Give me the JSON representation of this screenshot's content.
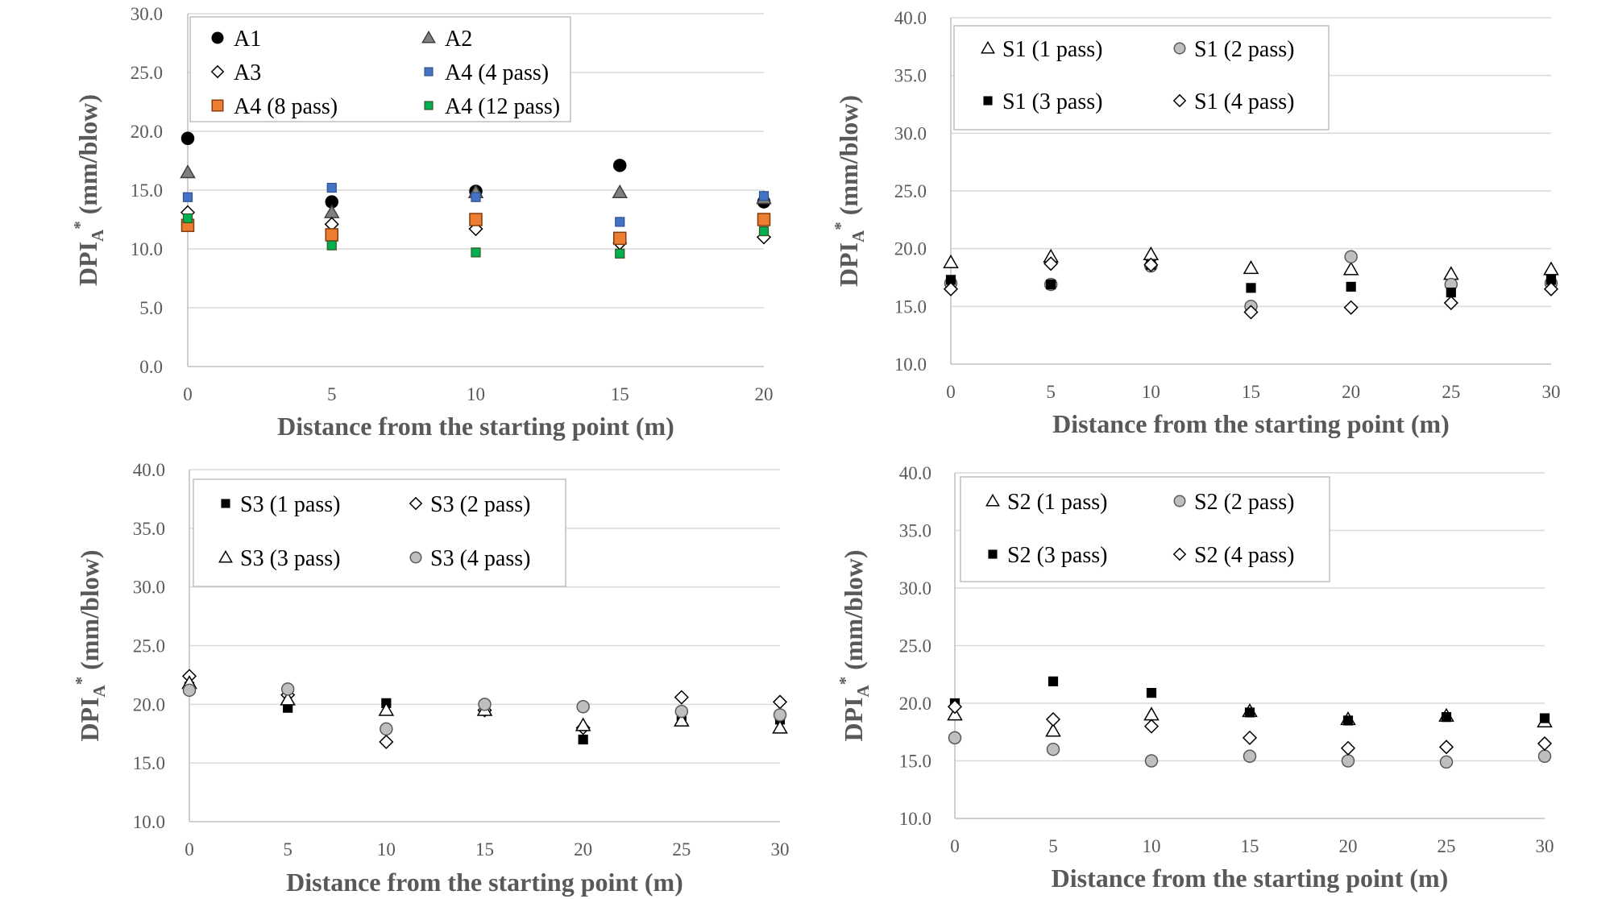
{
  "chart_data": [
    {
      "id": "A",
      "type": "scatter",
      "title": "",
      "xlabel": "Distance from the starting point (m)",
      "ylabel": {
        "main": "DPI",
        "sub": "A",
        "sup": "*",
        "unit": " (mm/blow)"
      },
      "xlim": [
        0,
        20
      ],
      "ylim": [
        0,
        30
      ],
      "xticks": [
        0,
        5,
        10,
        15,
        20
      ],
      "yticks": [
        0,
        5,
        10,
        15,
        20,
        25,
        30
      ],
      "ytick_labels": [
        "0.0",
        "5.0",
        "10.0",
        "15.0",
        "20.0",
        "25.0",
        "30.0"
      ],
      "grid": "horizontal",
      "legend": {
        "position": "top-left",
        "columns": 2
      },
      "series": [
        {
          "name": "A1",
          "marker": "circle",
          "color": "#000000",
          "stroke": "#000000",
          "x": [
            0,
            5,
            10,
            15,
            20
          ],
          "y": [
            19.4,
            14.0,
            14.9,
            17.1,
            14.0
          ]
        },
        {
          "name": "A2",
          "marker": "triangle",
          "color": "#808080",
          "stroke": "#404040",
          "x": [
            0,
            5,
            10,
            15,
            20
          ],
          "y": [
            16.5,
            13.1,
            14.8,
            14.8,
            14.3
          ]
        },
        {
          "name": "A3",
          "marker": "diamond",
          "color": "#ffffff",
          "stroke": "#000000",
          "x": [
            0,
            5,
            10,
            15,
            20
          ],
          "y": [
            13.1,
            12.1,
            11.7,
            10.5,
            11.0
          ]
        },
        {
          "name": "A4 (4 pass)",
          "marker": "square-small",
          "color": "#4472c4",
          "stroke": "#2f528f",
          "x": [
            0,
            5,
            10,
            15,
            20
          ],
          "y": [
            14.4,
            15.2,
            14.4,
            12.3,
            14.5
          ]
        },
        {
          "name": "A4 (8 pass)",
          "marker": "square",
          "color": "#ed7d31",
          "stroke": "#843c0c",
          "x": [
            0,
            5,
            10,
            15,
            20
          ],
          "y": [
            12.0,
            11.2,
            12.5,
            10.9,
            12.5
          ]
        },
        {
          "name": "A4 (12 pass)",
          "marker": "square-small",
          "color": "#00b050",
          "stroke": "#375623",
          "x": [
            0,
            5,
            10,
            15,
            20
          ],
          "y": [
            12.6,
            10.3,
            9.7,
            9.6,
            11.5
          ]
        }
      ]
    },
    {
      "id": "S1",
      "type": "scatter",
      "title": "",
      "xlabel": "Distance from the starting point (m)",
      "ylabel": {
        "main": "DPI",
        "sub": "A",
        "sup": "*",
        "unit": " (mm/blow)"
      },
      "xlim": [
        0,
        30
      ],
      "ylim": [
        10,
        40
      ],
      "xticks": [
        0,
        5,
        10,
        15,
        20,
        25,
        30
      ],
      "yticks": [
        10,
        15,
        20,
        25,
        30,
        35,
        40
      ],
      "ytick_labels": [
        "10.0",
        "15.0",
        "20.0",
        "25.0",
        "30.0",
        "35.0",
        "40.0"
      ],
      "grid": "horizontal",
      "legend": {
        "position": "top-left",
        "columns": 2
      },
      "series": [
        {
          "name": "S1 (1 pass)",
          "marker": "triangle",
          "color": "#ffffff",
          "stroke": "#000000",
          "x": [
            0,
            5,
            10,
            15,
            20,
            25,
            30
          ],
          "y": [
            18.8,
            19.3,
            19.5,
            18.3,
            18.2,
            17.8,
            18.2
          ]
        },
        {
          "name": "S1 (2 pass)",
          "marker": "circle",
          "color": "#bfbfbf",
          "stroke": "#595959",
          "x": [
            0,
            5,
            10,
            15,
            20,
            25,
            30
          ],
          "y": [
            17.0,
            16.9,
            18.5,
            15.0,
            19.3,
            16.9,
            17.0
          ]
        },
        {
          "name": "S1 (3 pass)",
          "marker": "square-small",
          "color": "#000000",
          "stroke": "#000000",
          "x": [
            0,
            5,
            10,
            15,
            20,
            25,
            30
          ],
          "y": [
            17.3,
            16.9,
            18.6,
            16.6,
            16.7,
            16.2,
            17.3
          ]
        },
        {
          "name": "S1 (4 pass)",
          "marker": "diamond",
          "color": "#ffffff",
          "stroke": "#000000",
          "x": [
            0,
            5,
            10,
            15,
            20,
            25,
            30
          ],
          "y": [
            16.5,
            18.7,
            18.6,
            14.5,
            14.9,
            15.3,
            16.5
          ]
        }
      ]
    },
    {
      "id": "S3",
      "type": "scatter",
      "title": "",
      "xlabel": "Distance from the starting point (m)",
      "ylabel": {
        "main": "DPI",
        "sub": "A",
        "sup": "*",
        "unit": " (mm/blow)"
      },
      "xlim": [
        0,
        30
      ],
      "ylim": [
        10,
        40
      ],
      "xticks": [
        0,
        5,
        10,
        15,
        20,
        25,
        30
      ],
      "yticks": [
        10,
        15,
        20,
        25,
        30,
        35,
        40
      ],
      "ytick_labels": [
        "10.0",
        "15.0",
        "20.0",
        "25.0",
        "30.0",
        "35.0",
        "40.0"
      ],
      "grid": "horizontal",
      "legend": {
        "position": "top-left",
        "columns": 2
      },
      "series": [
        {
          "name": "S3 (1 pass)",
          "marker": "square-small",
          "color": "#000000",
          "stroke": "#000000",
          "x": [
            0,
            5,
            10,
            15,
            20,
            25,
            30
          ],
          "y": [
            21.5,
            19.7,
            20.1,
            19.6,
            17.0,
            19.0,
            18.7
          ]
        },
        {
          "name": "S3 (2 pass)",
          "marker": "diamond",
          "color": "#ffffff",
          "stroke": "#000000",
          "x": [
            0,
            5,
            10,
            15,
            20,
            25,
            30
          ],
          "y": [
            22.4,
            20.8,
            16.8,
            19.5,
            18.0,
            20.6,
            20.2
          ]
        },
        {
          "name": "S3 (3 pass)",
          "marker": "triangle",
          "color": "#ffffff",
          "stroke": "#000000",
          "x": [
            0,
            5,
            10,
            15,
            20,
            25,
            30
          ],
          "y": [
            21.8,
            20.4,
            19.5,
            19.5,
            18.2,
            18.6,
            18.0
          ]
        },
        {
          "name": "S3 (4 pass)",
          "marker": "circle",
          "color": "#bfbfbf",
          "stroke": "#595959",
          "x": [
            0,
            5,
            10,
            15,
            20,
            25,
            30
          ],
          "y": [
            21.2,
            21.3,
            17.9,
            20.0,
            19.8,
            19.4,
            19.1
          ]
        }
      ]
    },
    {
      "id": "S2",
      "type": "scatter",
      "title": "",
      "xlabel": "Distance from the starting point (m)",
      "ylabel": {
        "main": "DPI",
        "sub": "A",
        "sup": "*",
        "unit": " (mm/blow)"
      },
      "xlim": [
        0,
        30
      ],
      "ylim": [
        10,
        40
      ],
      "xticks": [
        0,
        5,
        10,
        15,
        20,
        25,
        30
      ],
      "yticks": [
        10,
        15,
        20,
        25,
        30,
        35,
        40
      ],
      "ytick_labels": [
        "10.0",
        "15.0",
        "20.0",
        "25.0",
        "30.0",
        "35.0",
        "40.0"
      ],
      "grid": "horizontal",
      "legend": {
        "position": "top-left",
        "columns": 2
      },
      "series": [
        {
          "name": "S2 (1 pass)",
          "marker": "triangle",
          "color": "#ffffff",
          "stroke": "#000000",
          "x": [
            0,
            5,
            10,
            15,
            20,
            25,
            30
          ],
          "y": [
            19.0,
            17.6,
            19.0,
            19.3,
            18.6,
            18.9,
            18.4
          ]
        },
        {
          "name": "S2 (2 pass)",
          "marker": "circle",
          "color": "#bfbfbf",
          "stroke": "#595959",
          "x": [
            0,
            5,
            10,
            15,
            20,
            25,
            30
          ],
          "y": [
            17.0,
            16.0,
            15.0,
            15.4,
            15.0,
            14.9,
            15.4
          ]
        },
        {
          "name": "S2 (3 pass)",
          "marker": "square-small",
          "color": "#000000",
          "stroke": "#000000",
          "x": [
            0,
            5,
            10,
            15,
            20,
            25,
            30
          ],
          "y": [
            20.0,
            21.9,
            20.9,
            19.2,
            18.5,
            18.8,
            18.7
          ]
        },
        {
          "name": "S2 (4 pass)",
          "marker": "diamond",
          "color": "#ffffff",
          "stroke": "#000000",
          "x": [
            0,
            5,
            10,
            15,
            20,
            25,
            30
          ],
          "y": [
            19.7,
            18.6,
            18.0,
            17.0,
            16.1,
            16.2,
            16.5
          ]
        }
      ]
    }
  ]
}
